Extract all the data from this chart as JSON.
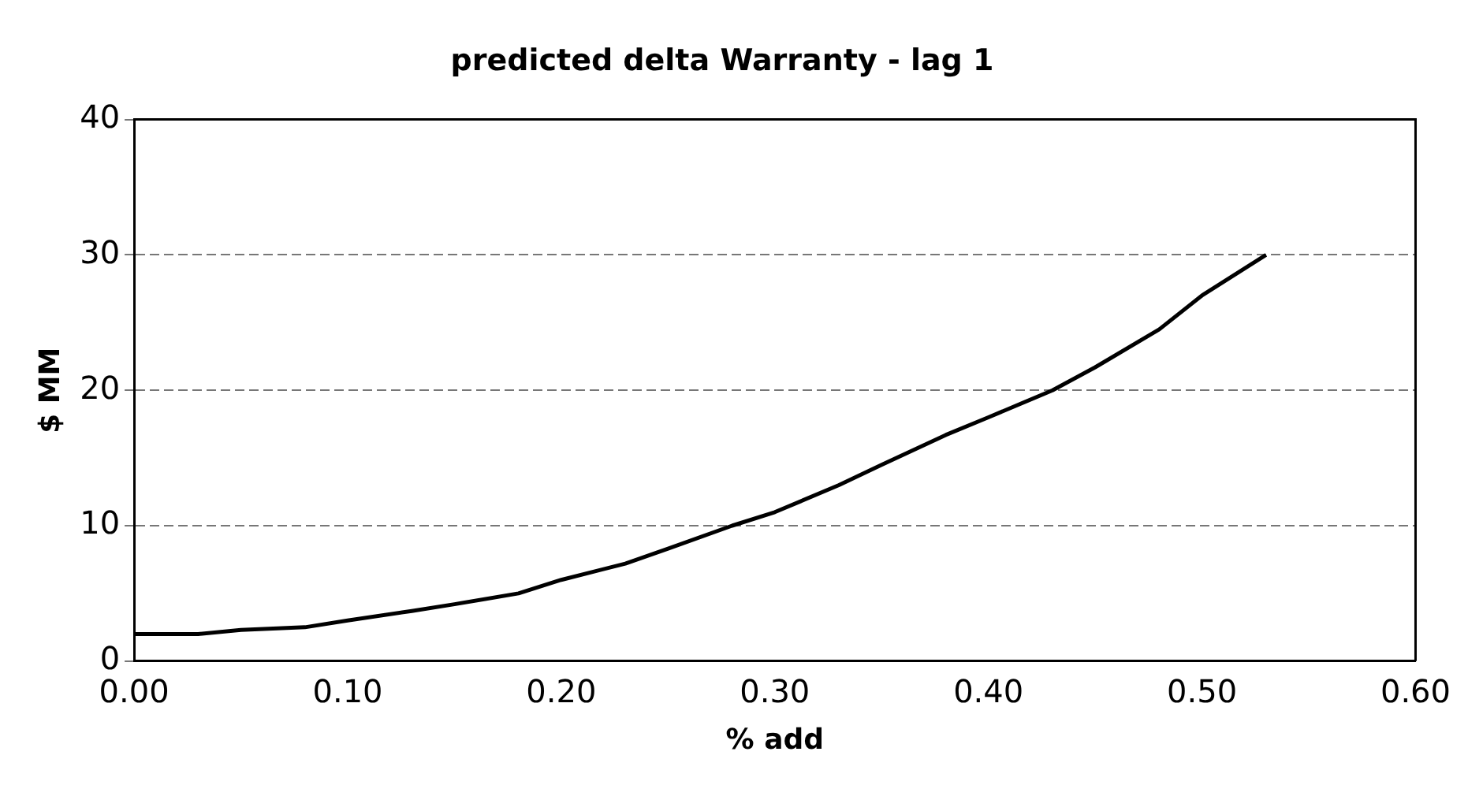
{
  "chart_data": {
    "type": "line",
    "title": "predicted delta Warranty - lag 1",
    "xlabel": "% add",
    "ylabel": "$ MM",
    "x": [
      0,
      0.03,
      0.05,
      0.08,
      0.1,
      0.13,
      0.15,
      0.18,
      0.2,
      0.23,
      0.25,
      0.28,
      0.3,
      0.33,
      0.35,
      0.38,
      0.4,
      0.43,
      0.45,
      0.48,
      0.5,
      0.53
    ],
    "series": [
      {
        "color": "#000000",
        "values": [
          2,
          2,
          2.3,
          2.5,
          3,
          3.7,
          4.2,
          5,
          6,
          7.2,
          8.3,
          10,
          11,
          13,
          14.5,
          16.7,
          18,
          20,
          21.7,
          24.5,
          27,
          30
        ]
      }
    ],
    "xlim": [
      0,
      0.6
    ],
    "xticks": [
      {
        "value": 0,
        "label": "0.00"
      },
      {
        "value": 0.1,
        "label": "0.10"
      },
      {
        "value": 0.2,
        "label": "0.20"
      },
      {
        "value": 0.3,
        "label": "0.30"
      },
      {
        "value": 0.4,
        "label": "0.40"
      },
      {
        "value": 0.5,
        "label": "0.50"
      },
      {
        "value": 0.6,
        "label": "0.60"
      }
    ],
    "ylim": [
      0,
      40
    ],
    "yticks": [
      0,
      10,
      20,
      30,
      40
    ],
    "grid": "y",
    "legend": false,
    "marker": "none",
    "line_style": "solid"
  }
}
